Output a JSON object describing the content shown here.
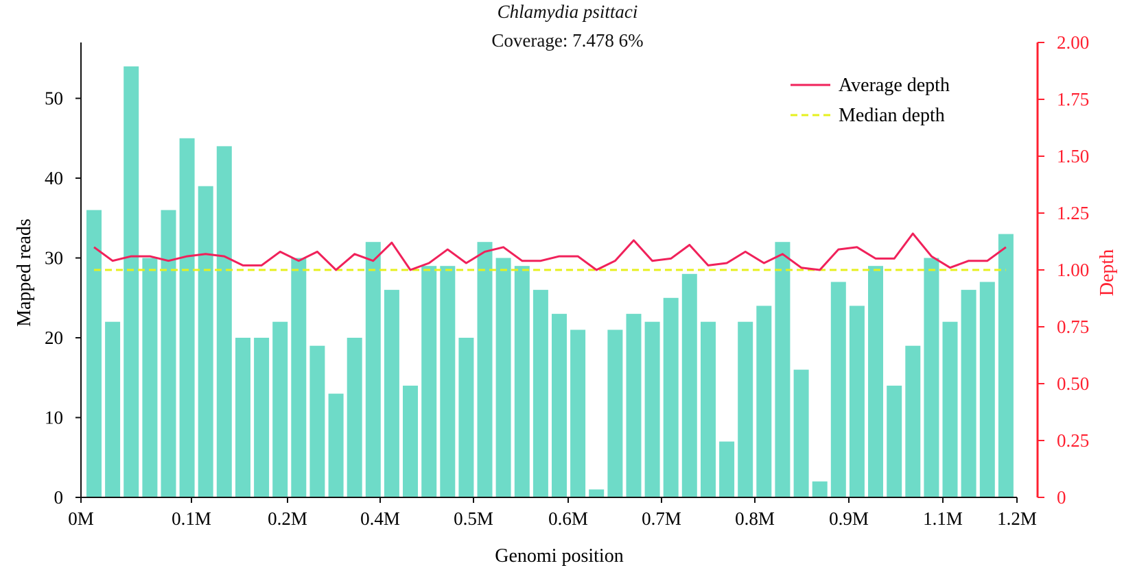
{
  "chart_data": {
    "type": "bar",
    "title": "Chlamydia psittaci",
    "subtitle": "Coverage: 7.478 6%",
    "xlabel": "Genomi position",
    "ylabel": "Mapped reads",
    "y2label": "Depth",
    "xlim": [
      0,
      1.2
    ],
    "ylim": [
      0,
      57
    ],
    "y2lim": [
      0,
      2.0
    ],
    "x_ticks": [
      "0M",
      "0.1M",
      "0.2M",
      "0.4M",
      "0.5M",
      "0.6M",
      "0.7M",
      "0.8M",
      "0.9M",
      "1.1M",
      "1.2M"
    ],
    "y_ticks": [
      0,
      10,
      20,
      30,
      40,
      50
    ],
    "y2_ticks": [
      "0",
      "0.25",
      "0.50",
      "0.75",
      "1.00",
      "1.25",
      "1.50",
      "1.75",
      "2.00"
    ],
    "legend_position": "top-right",
    "grid": false,
    "colors": {
      "bars": "#6edbc8",
      "average": "#f0215a",
      "median": "#e6f01e",
      "right_axis": "#ff2030"
    },
    "series": [
      {
        "name": "Mapped reads",
        "type": "bar",
        "axis": "left",
        "values": [
          36,
          22,
          54,
          30,
          36,
          45,
          39,
          44,
          20,
          20,
          22,
          30,
          19,
          13,
          20,
          32,
          26,
          14,
          29,
          29,
          20,
          32,
          30,
          29,
          26,
          23,
          21,
          1,
          21,
          23,
          22,
          25,
          28,
          22,
          7,
          22,
          24,
          32,
          16,
          2,
          27,
          24,
          29,
          14,
          19,
          30,
          22,
          26,
          27,
          33
        ]
      },
      {
        "name": "Average depth",
        "type": "line",
        "axis": "right",
        "values": [
          1.1,
          1.04,
          1.06,
          1.06,
          1.04,
          1.06,
          1.07,
          1.06,
          1.02,
          1.02,
          1.08,
          1.04,
          1.08,
          1.0,
          1.07,
          1.04,
          1.12,
          1.0,
          1.03,
          1.09,
          1.03,
          1.08,
          1.1,
          1.04,
          1.04,
          1.06,
          1.06,
          1.0,
          1.04,
          1.13,
          1.04,
          1.05,
          1.11,
          1.02,
          1.03,
          1.08,
          1.03,
          1.07,
          1.01,
          1.0,
          1.09,
          1.1,
          1.05,
          1.05,
          1.16,
          1.06,
          1.01,
          1.04,
          1.04,
          1.1
        ]
      },
      {
        "name": "Median depth",
        "type": "line",
        "axis": "right",
        "dashed": true,
        "values": [
          1.0,
          1.0
        ]
      }
    ]
  }
}
